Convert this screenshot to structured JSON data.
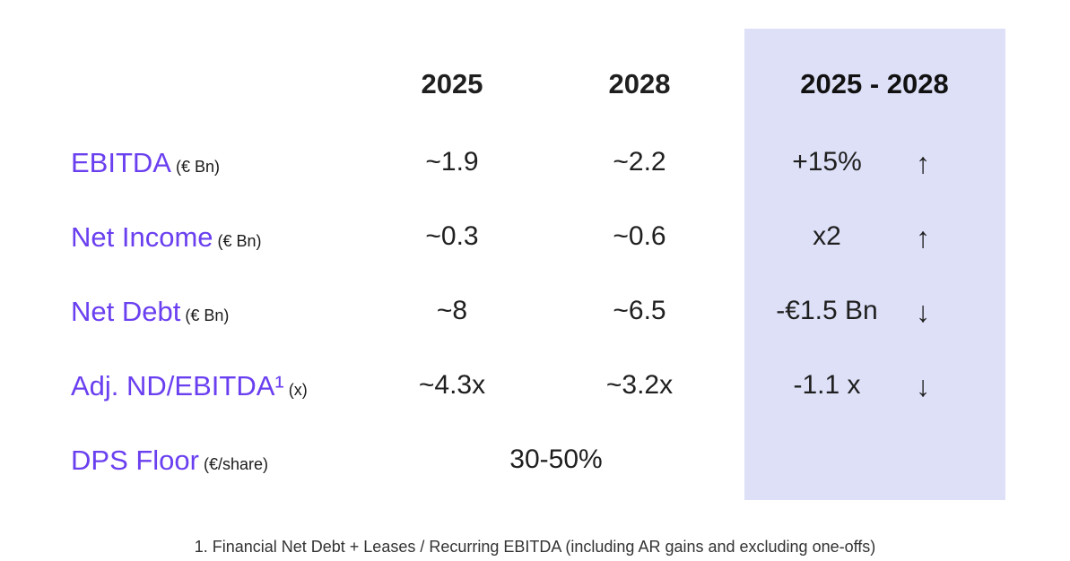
{
  "header": {
    "col_2025": "2025",
    "col_2028": "2028",
    "col_range": "2025 - 2028"
  },
  "rows": [
    {
      "name": "EBITDA",
      "unit": "(€ Bn)",
      "v2025": "~1.9",
      "v2028": "~2.2",
      "change": "+15%",
      "arrow": "↑"
    },
    {
      "name": "Net Income",
      "unit": "(€ Bn)",
      "v2025": "~0.3",
      "v2028": "~0.6",
      "change": "x2",
      "arrow": "↑"
    },
    {
      "name": "Net Debt",
      "unit": "(€ Bn)",
      "v2025": "~8",
      "v2028": "~6.5",
      "change": "-€1.5 Bn",
      "arrow": "↓"
    },
    {
      "name": "Adj. ND/EBITDA¹",
      "unit": "(x)",
      "v2025": "~4.3x",
      "v2028": "~3.2x",
      "change": "-1.1 x",
      "arrow": "↓"
    }
  ],
  "dps_row": {
    "name": "DPS Floor",
    "unit": "(€/share)",
    "value": "30-50%"
  },
  "footnote": "1. Financial Net Debt + Leases / Recurring EBITDA (including AR gains and excluding one-offs)",
  "colors": {
    "label_accent": "#6a3ff0",
    "highlight_panel": "#dde0f7"
  }
}
